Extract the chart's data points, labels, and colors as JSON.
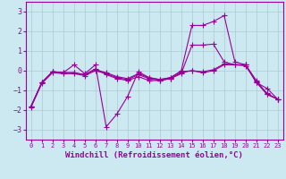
{
  "xlabel": "Windchill (Refroidissement éolien,°C)",
  "bg_color": "#cce8f0",
  "line_color": "#990099",
  "grid_color": "#aacccc",
  "x_hours": [
    0,
    1,
    2,
    3,
    4,
    5,
    6,
    7,
    8,
    9,
    10,
    11,
    12,
    13,
    14,
    15,
    16,
    17,
    18,
    19,
    20,
    21,
    22,
    23
  ],
  "series": [
    [
      -1.8,
      -0.6,
      -0.05,
      -0.1,
      0.3,
      -0.15,
      0.3,
      -2.85,
      -2.2,
      -1.3,
      -0.05,
      -0.35,
      -0.45,
      -0.35,
      0.0,
      2.3,
      2.3,
      2.5,
      2.8,
      0.45,
      0.3,
      -0.6,
      -0.9,
      -1.45
    ],
    [
      -1.8,
      -0.6,
      -0.05,
      -0.1,
      -0.1,
      -0.2,
      0.1,
      -0.2,
      -0.4,
      -0.5,
      -0.3,
      -0.5,
      -0.5,
      -0.4,
      -0.15,
      1.3,
      1.3,
      1.35,
      0.45,
      0.3,
      0.3,
      -0.5,
      -1.2,
      -1.45
    ],
    [
      -1.8,
      -0.6,
      -0.05,
      -0.1,
      -0.1,
      -0.2,
      0.05,
      -0.1,
      -0.3,
      -0.4,
      -0.15,
      -0.35,
      -0.45,
      -0.35,
      -0.05,
      0.0,
      -0.1,
      0.0,
      0.3,
      0.3,
      0.3,
      -0.6,
      -1.2,
      -1.45
    ],
    [
      -1.85,
      -0.65,
      -0.1,
      -0.15,
      -0.15,
      -0.25,
      0.0,
      -0.15,
      -0.35,
      -0.45,
      -0.2,
      -0.4,
      -0.5,
      -0.4,
      -0.1,
      0.0,
      -0.05,
      0.05,
      0.35,
      0.3,
      0.25,
      -0.55,
      -1.15,
      -1.45
    ]
  ],
  "ylim": [
    -3.5,
    3.5
  ],
  "yticks": [
    -3,
    -2,
    -1,
    0,
    1,
    2,
    3
  ],
  "xtick_labels": [
    "0",
    "1",
    "2",
    "3",
    "4",
    "5",
    "6",
    "7",
    "8",
    "9",
    "10",
    "11",
    "12",
    "13",
    "14",
    "15",
    "16",
    "17",
    "18",
    "19",
    "20",
    "21",
    "22",
    "23"
  ],
  "marker": "+",
  "markersize": 4,
  "linewidth": 0.8
}
